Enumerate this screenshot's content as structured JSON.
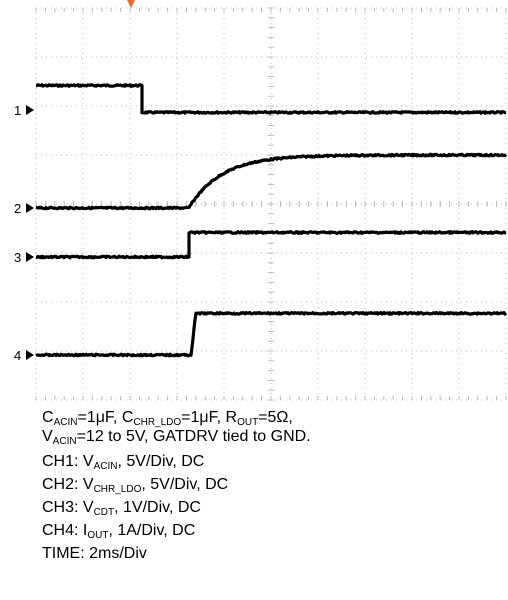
{
  "chart_data": {
    "type": "line",
    "title": "",
    "grid": "dotted 10x8 divisions with center crosshair",
    "trigger_marker_color": "#e8692a",
    "trace_color": "#000000",
    "time_per_div": "2ms/Div",
    "divisions": {
      "x": 10,
      "y": 8
    },
    "series": [
      {
        "name": "1",
        "kind": "step",
        "start_div": 0.5,
        "end_div": -0.05,
        "step_at_div": 2.25,
        "edge_div": 0.0
      },
      {
        "name": "2",
        "kind": "exp_rise",
        "start_div": 0.0,
        "rise_start_div": 3.25,
        "final_div": 1.08,
        "tau_div": 0.7
      },
      {
        "name": "3",
        "kind": "step",
        "start_div": 0.0,
        "end_div": 0.5,
        "step_at_div": 3.25,
        "edge_div": 0.0
      },
      {
        "name": "4",
        "kind": "step",
        "start_div": 0.0,
        "end_div": 0.85,
        "step_at_div": 3.3,
        "edge_div": 0.1
      }
    ],
    "channel_markers": [
      "1",
      "2",
      "3",
      "4"
    ]
  },
  "caption": {
    "conditions_line1": [
      {
        "t": "C"
      },
      {
        "sub": "ACIN"
      },
      {
        "t": "=1μF, C"
      },
      {
        "sub": "CHR_LDO"
      },
      {
        "t": "=1μF, R"
      },
      {
        "sub": "OUT"
      },
      {
        "t": "=5Ω,"
      }
    ],
    "conditions_line2": [
      {
        "t": "V"
      },
      {
        "sub": "ACIN"
      },
      {
        "t": "=12 to 5V, GATDRV tied to GND."
      }
    ],
    "ch1": [
      {
        "t": "CH1: V"
      },
      {
        "sub": "ACIN"
      },
      {
        "t": ", 5V/Div, DC"
      }
    ],
    "ch2": [
      {
        "t": "CH2: V"
      },
      {
        "sub": "CHR_LDO"
      },
      {
        "t": ", 5V/Div, DC"
      }
    ],
    "ch3": [
      {
        "t": "CH3: V"
      },
      {
        "sub": "CDT"
      },
      {
        "t": ", 1V/Div, DC"
      }
    ],
    "ch4": [
      {
        "t": "CH4: I"
      },
      {
        "sub": "OUT"
      },
      {
        "t": ", 1A/Div, DC"
      }
    ],
    "time": [
      {
        "t": "TIME: 2ms/Div"
      }
    ]
  }
}
